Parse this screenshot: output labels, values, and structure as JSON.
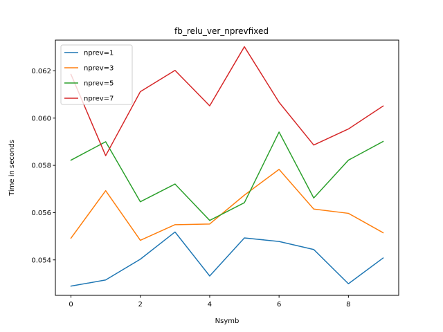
{
  "chart_data": {
    "type": "line",
    "title": "fb_relu_ver_nprevfixed",
    "xlabel": "Nsymb",
    "ylabel": "Time in seconds",
    "xlim": [
      -0.45,
      9.45
    ],
    "ylim": [
      0.0525,
      0.0633
    ],
    "xticks": [
      0,
      2,
      4,
      6,
      8
    ],
    "yticks": [
      0.054,
      0.056,
      0.058,
      0.06,
      0.062
    ],
    "ytick_labels": [
      "0.054",
      "0.056",
      "0.058",
      "0.060",
      "0.062"
    ],
    "grid": false,
    "legend_position": "top-left",
    "x": [
      0,
      1,
      2,
      3,
      4,
      5,
      6,
      7,
      8,
      9
    ],
    "series": [
      {
        "name": "nprev=1",
        "color": "#1f77b4",
        "values": [
          0.05289,
          0.05315,
          0.05403,
          0.05518,
          0.05332,
          0.05493,
          0.05478,
          0.05444,
          0.05299,
          0.05408
        ]
      },
      {
        "name": "nprev=3",
        "color": "#ff7f0e",
        "values": [
          0.05492,
          0.05693,
          0.05483,
          0.05549,
          0.05552,
          0.05674,
          0.05783,
          0.05615,
          0.05597,
          0.05515
        ]
      },
      {
        "name": "nprev=5",
        "color": "#2ca02c",
        "values": [
          0.05822,
          0.059,
          0.05646,
          0.05721,
          0.05567,
          0.05642,
          0.05941,
          0.05662,
          0.05822,
          0.05901
        ]
      },
      {
        "name": "nprev=7",
        "color": "#d62728",
        "values": [
          0.06185,
          0.05841,
          0.06112,
          0.06202,
          0.06052,
          0.06302,
          0.06067,
          0.05886,
          0.05954,
          0.06051
        ]
      }
    ]
  }
}
